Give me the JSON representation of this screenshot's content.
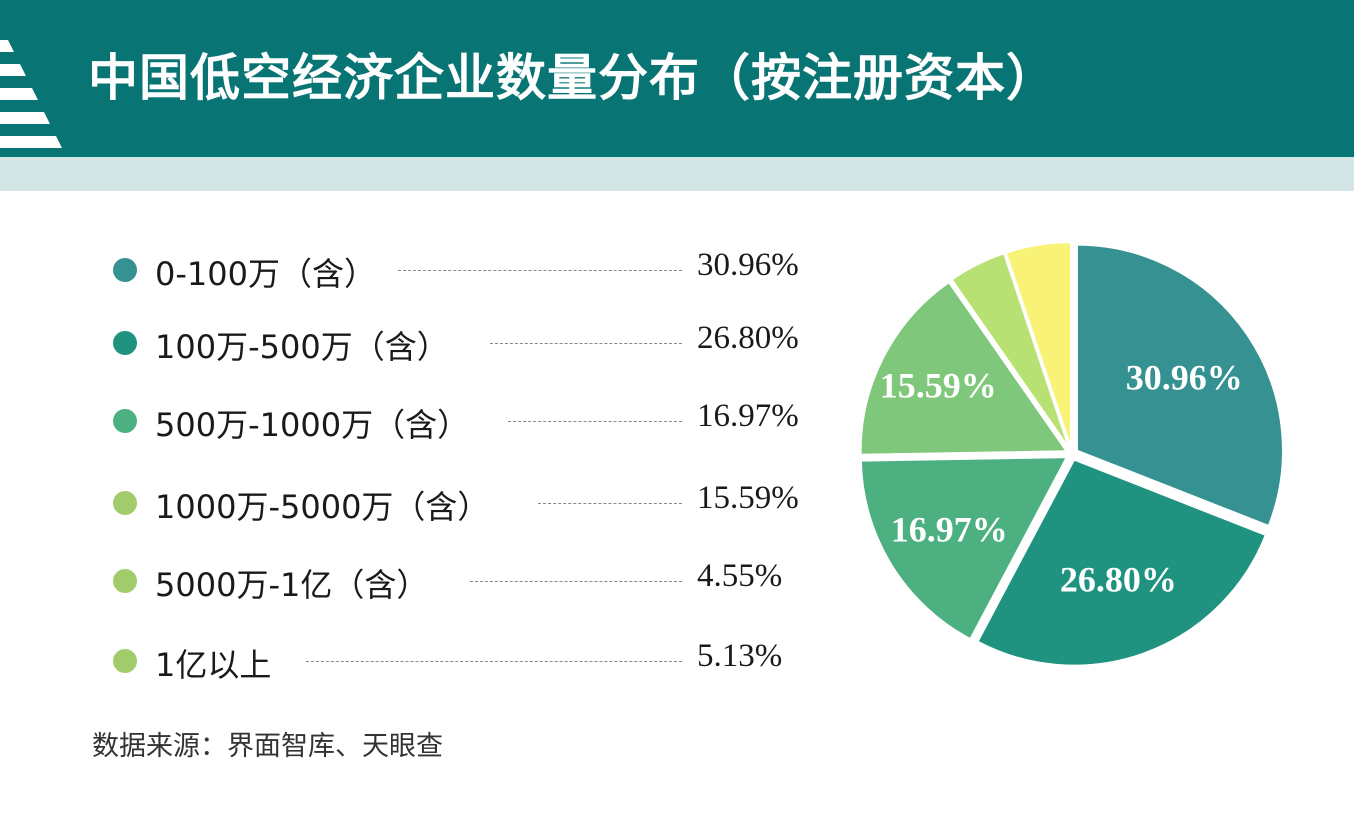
{
  "header": {
    "title": "中国低空经济企业数量分布（按注册资本）"
  },
  "colors": {
    "header_bg": "#087473",
    "header_band": "#d3e6e5"
  },
  "chart_data": {
    "type": "pie",
    "title": "中国低空经济企业数量分布（按注册资本）",
    "categories": [
      "0-100万（含）",
      "100万-500万（含）",
      "500万-1000万（含）",
      "1000万-5000万（含）",
      "5000万-1亿（含）",
      "1亿以上"
    ],
    "values": [
      30.96,
      26.8,
      16.97,
      15.59,
      4.55,
      5.13
    ],
    "value_labels": [
      "30.96%",
      "26.80%",
      "16.97%",
      "15.59%",
      "4.55%",
      "5.13%"
    ],
    "slice_labels": [
      "30.96%",
      "26.80%",
      "16.97%",
      "15.59%",
      "",
      ""
    ],
    "colors": [
      "#369192",
      "#1f9380",
      "#4cb080",
      "#7fc77a",
      "#b8e173",
      "#f8f376"
    ],
    "legend_dot_colors": [
      "#369192",
      "#1f9380",
      "#4cb080",
      "#a2cb6b",
      "#a2cb6b",
      "#a2cb6b"
    ],
    "legend_placement": "left",
    "exploded": true
  },
  "source": "数据来源：界面智库、天眼查"
}
